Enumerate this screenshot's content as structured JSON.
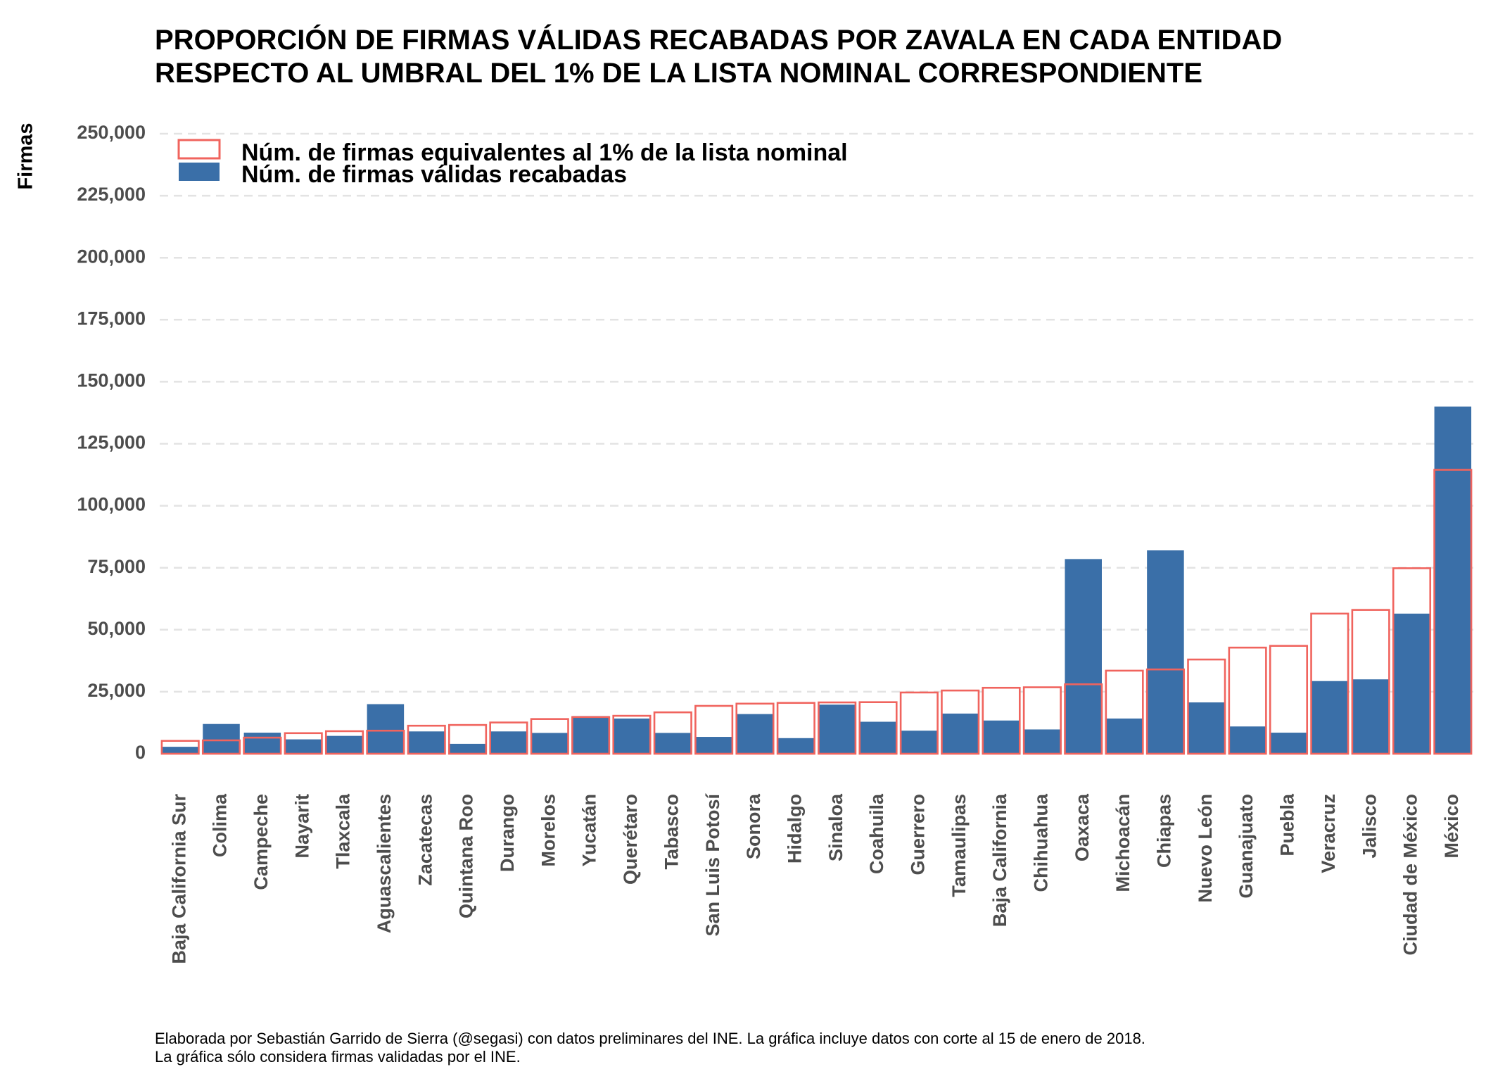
{
  "title_lines": [
    "PROPORCIÓN DE FIRMAS VÁLIDAS RECABADAS POR ZAVALA EN CADA ENTIDAD",
    "RESPECTO AL UMBRAL DEL 1% DE LA LISTA NOMINAL CORRESPONDIENTE"
  ],
  "caption_lines": [
    "Elaborada por Sebastián Garrido de Sierra (@segasi) con datos preliminares del INE. La gráfica incluye datos con corte al 15 de enero de 2018.",
    "La gráfica sólo considera firmas validadas por el INE."
  ],
  "colors": {
    "valid_fill": "#3a6fa8",
    "threshold_outline": "#f0645e",
    "grid": "#e3e3e3"
  },
  "chart_data": {
    "type": "bar",
    "ylabel": "Firmas",
    "xlabel": "",
    "ylim": [
      0,
      250000
    ],
    "yticks": [
      0,
      25000,
      50000,
      75000,
      100000,
      125000,
      150000,
      175000,
      200000,
      225000,
      250000
    ],
    "ytick_labels": [
      "0",
      "25,000",
      "50,000",
      "75,000",
      "100,000",
      "125,000",
      "150,000",
      "175,000",
      "200,000",
      "225,000",
      "250,000"
    ],
    "grid": "horizontal dashed",
    "legend_position": "top-left",
    "categories": [
      "Baja California Sur",
      "Colima",
      "Campeche",
      "Nayarit",
      "Tlaxcala",
      "Aguascalientes",
      "Zacatecas",
      "Quintana Roo",
      "Durango",
      "Morelos",
      "Yucatán",
      "Querétaro",
      "Tabasco",
      "San Luis Potosí",
      "Sonora",
      "Hidalgo",
      "Sinaloa",
      "Coahuila",
      "Guerrero",
      "Tamaulipas",
      "Baja California",
      "Chihuahua",
      "Oaxaca",
      "Michoacán",
      "Chiapas",
      "Nuevo León",
      "Guanajuato",
      "Puebla",
      "Veracruz",
      "Jalisco",
      "Ciudad de México",
      "México"
    ],
    "series": [
      {
        "name": "Núm. de firmas equivalentes al 1% de la lista nominal",
        "style": "outline",
        "values": [
          5200,
          5400,
          6500,
          8300,
          9100,
          9300,
          11300,
          11600,
          12600,
          14000,
          14800,
          15300,
          16700,
          19300,
          20200,
          20500,
          20700,
          20800,
          24700,
          25500,
          26600,
          26800,
          28000,
          33500,
          34000,
          38000,
          42800,
          43500,
          56500,
          58000,
          74800,
          114500
        ]
      },
      {
        "name": "Núm. de firmas válidas recabadas",
        "style": "filled",
        "values": [
          2800,
          12000,
          8500,
          5800,
          7200,
          20000,
          9000,
          4000,
          9000,
          8400,
          15200,
          14200,
          8400,
          6800,
          16000,
          6300,
          19800,
          12900,
          9300,
          16200,
          13400,
          9800,
          78500,
          14200,
          82000,
          20700,
          11000,
          8500,
          29300,
          30000,
          56500,
          140000
        ]
      }
    ]
  }
}
